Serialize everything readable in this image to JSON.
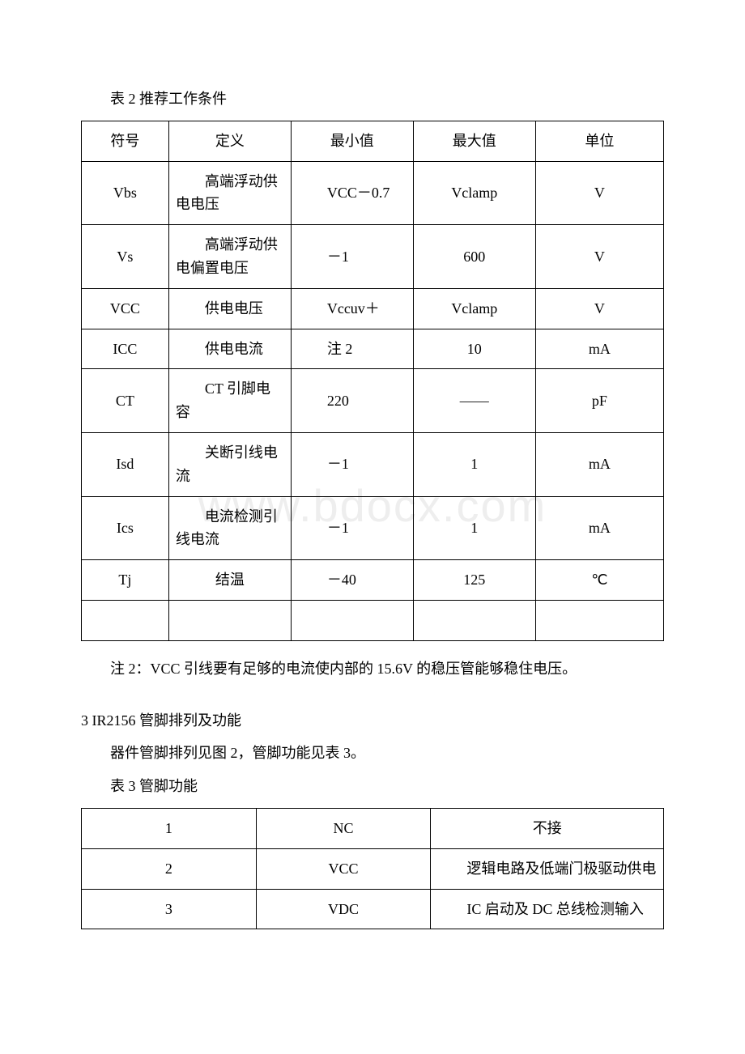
{
  "watermark": "www.bdocx.com",
  "table1": {
    "title": "表 2  推荐工作条件",
    "headers": [
      "符号",
      "定义",
      "最小值",
      "最大值",
      "单位"
    ],
    "rows": [
      [
        "Vbs",
        "高端浮动供电电压",
        "VCC－0.7",
        "Vclamp",
        "V"
      ],
      [
        "Vs",
        "高端浮动供电偏置电压",
        "－1",
        "600",
        "V"
      ],
      [
        "VCC",
        "供电电压",
        "Vccuv＋",
        "Vclamp",
        "V"
      ],
      [
        "ICC",
        "供电电流",
        "注 2",
        "10",
        "mA"
      ],
      [
        "CT",
        "CT 引脚电容",
        "220",
        "——",
        "pF"
      ],
      [
        "Isd",
        "关断引线电流",
        "－1",
        "1",
        "mA"
      ],
      [
        "Ics",
        "电流检测引线电流",
        "－1",
        "1",
        "mA"
      ],
      [
        "Tj",
        "结温",
        "－40",
        "125",
        "℃"
      ]
    ]
  },
  "note2": "注 2：VCC 引线要有足够的电流使内部的 15.6V 的稳压管能够稳住电压。",
  "section3": {
    "title": "3  IR2156 管脚排列及功能",
    "para": "器件管脚排列见图 2，管脚功能见表 3。"
  },
  "table2": {
    "title": "表 3  管脚功能",
    "rows": [
      [
        "1",
        "NC",
        "不接"
      ],
      [
        "2",
        "VCC",
        "逻辑电路及低端门极驱动供电"
      ],
      [
        "3",
        "VDC",
        "IC 启动及 DC 总线检测输入"
      ]
    ]
  }
}
